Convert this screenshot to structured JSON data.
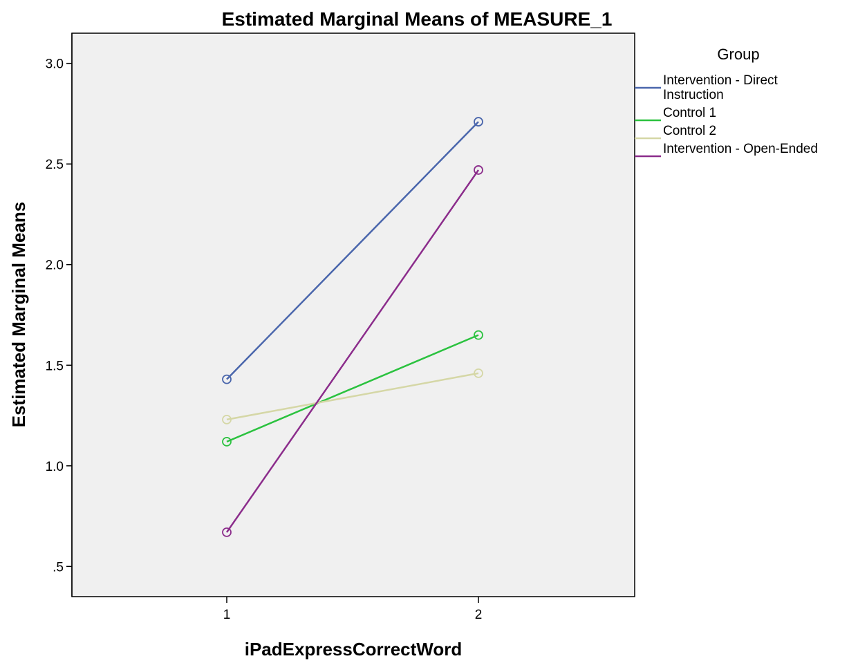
{
  "chart_data": {
    "type": "line",
    "title": "Estimated Marginal Means of MEASURE_1",
    "xlabel": "iPadExpressCorrectWord",
    "ylabel": "Estimated Marginal Means",
    "categories": [
      "1",
      "2"
    ],
    "yticks": [
      0.5,
      1.0,
      1.5,
      2.0,
      2.5,
      3.0
    ],
    "ytick_labels": [
      ".5",
      "1.0",
      "1.5",
      "2.0",
      "2.5",
      "3.0"
    ],
    "ylim": [
      0.35,
      3.15
    ],
    "grid": false,
    "legend": {
      "title": "Group",
      "position": "right"
    },
    "series": [
      {
        "name": "Intervention - Direct Instruction",
        "label_lines": [
          "Intervention - Direct",
          "Instruction"
        ],
        "color": "#4a66ac",
        "values": [
          1.43,
          2.71
        ]
      },
      {
        "name": "Control 1",
        "label_lines": [
          "Control 1"
        ],
        "color": "#2bc23f",
        "values": [
          1.12,
          1.65
        ]
      },
      {
        "name": "Control 2",
        "label_lines": [
          "Control 2"
        ],
        "color": "#d5d7a6",
        "values": [
          1.23,
          1.46
        ]
      },
      {
        "name": "Intervention - Open-Ended",
        "label_lines": [
          "Intervention - Open-Ended"
        ],
        "color": "#8b2c8b",
        "values": [
          0.67,
          2.47
        ]
      }
    ]
  }
}
